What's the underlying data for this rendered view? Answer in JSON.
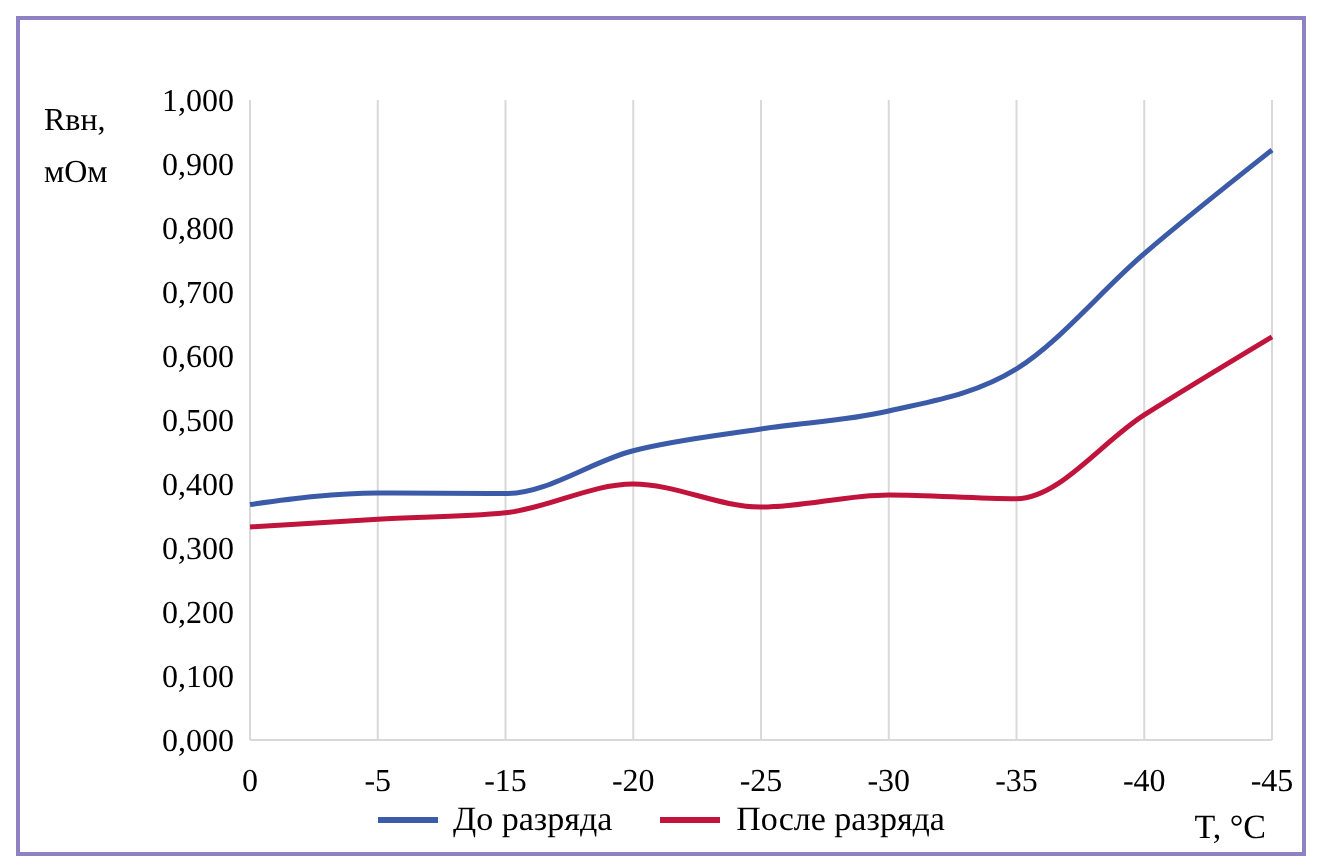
{
  "chart_data": {
    "type": "line",
    "ylabel": "Rвн, мОм",
    "xlabel": "T, °C",
    "categories": [
      "0",
      "-5",
      "-15",
      "-20",
      "-25",
      "-30",
      "-35",
      "-40",
      "-45"
    ],
    "series": [
      {
        "name": "До разряда",
        "color": "#3b5ba9",
        "values": [
          0.368,
          0.386,
          0.385,
          0.452,
          0.486,
          0.514,
          0.58,
          0.76,
          0.922
        ]
      },
      {
        "name": "После разряда",
        "color": "#c0143c",
        "values": [
          0.333,
          0.345,
          0.355,
          0.4,
          0.364,
          0.383,
          0.377,
          0.508,
          0.63
        ]
      }
    ],
    "ylim": [
      0,
      1
    ],
    "yticks": [
      {
        "value": 0,
        "label": "0,000"
      },
      {
        "value": 0.1,
        "label": "0,100"
      },
      {
        "value": 0.2,
        "label": "0,200"
      },
      {
        "value": 0.3,
        "label": "0,300"
      },
      {
        "value": 0.4,
        "label": "0,400"
      },
      {
        "value": 0.5,
        "label": "0,500"
      },
      {
        "value": 0.6,
        "label": "0,600"
      },
      {
        "value": 0.7,
        "label": "0,700"
      },
      {
        "value": 0.8,
        "label": "0,800"
      },
      {
        "value": 0.9,
        "label": "0,900"
      },
      {
        "value": 1,
        "label": "1,000"
      }
    ],
    "grid": "x",
    "legend": "bottom",
    "marker": "none",
    "line_style": "solid"
  }
}
